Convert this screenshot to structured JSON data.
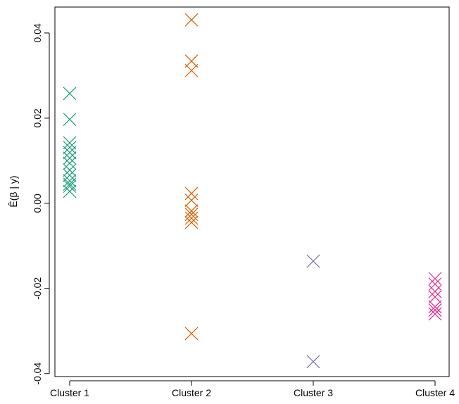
{
  "chart_data": {
    "type": "strip",
    "y_label": "Ê(β | y)",
    "categories": [
      "Cluster 1",
      "Cluster 2",
      "Cluster 3",
      "Cluster 4"
    ],
    "colors": [
      "#1b9e77",
      "#d95f02",
      "#7570b3",
      "#e7298a"
    ],
    "values": [
      [
        0.0258,
        0.0197,
        0.0142,
        0.0131,
        0.0119,
        0.0106,
        0.0094,
        0.0078,
        0.0066,
        0.0053,
        0.0045,
        0.004,
        0.0028
      ],
      [
        0.0431,
        0.0334,
        0.0312,
        0.0023,
        0.0007,
        -0.0018,
        -0.0026,
        -0.0035,
        -0.0045,
        -0.0306
      ],
      [
        -0.0136,
        -0.0372
      ],
      [
        -0.0177,
        -0.019,
        -0.0207,
        -0.022,
        -0.0243,
        -0.0251,
        -0.026
      ]
    ],
    "ylim": [
      -0.0407,
      0.0461
    ],
    "yticks": [
      0.04,
      0.02,
      {
        "value": 0,
        "label": "0.00"
      },
      -0.02,
      -0.04
    ]
  }
}
